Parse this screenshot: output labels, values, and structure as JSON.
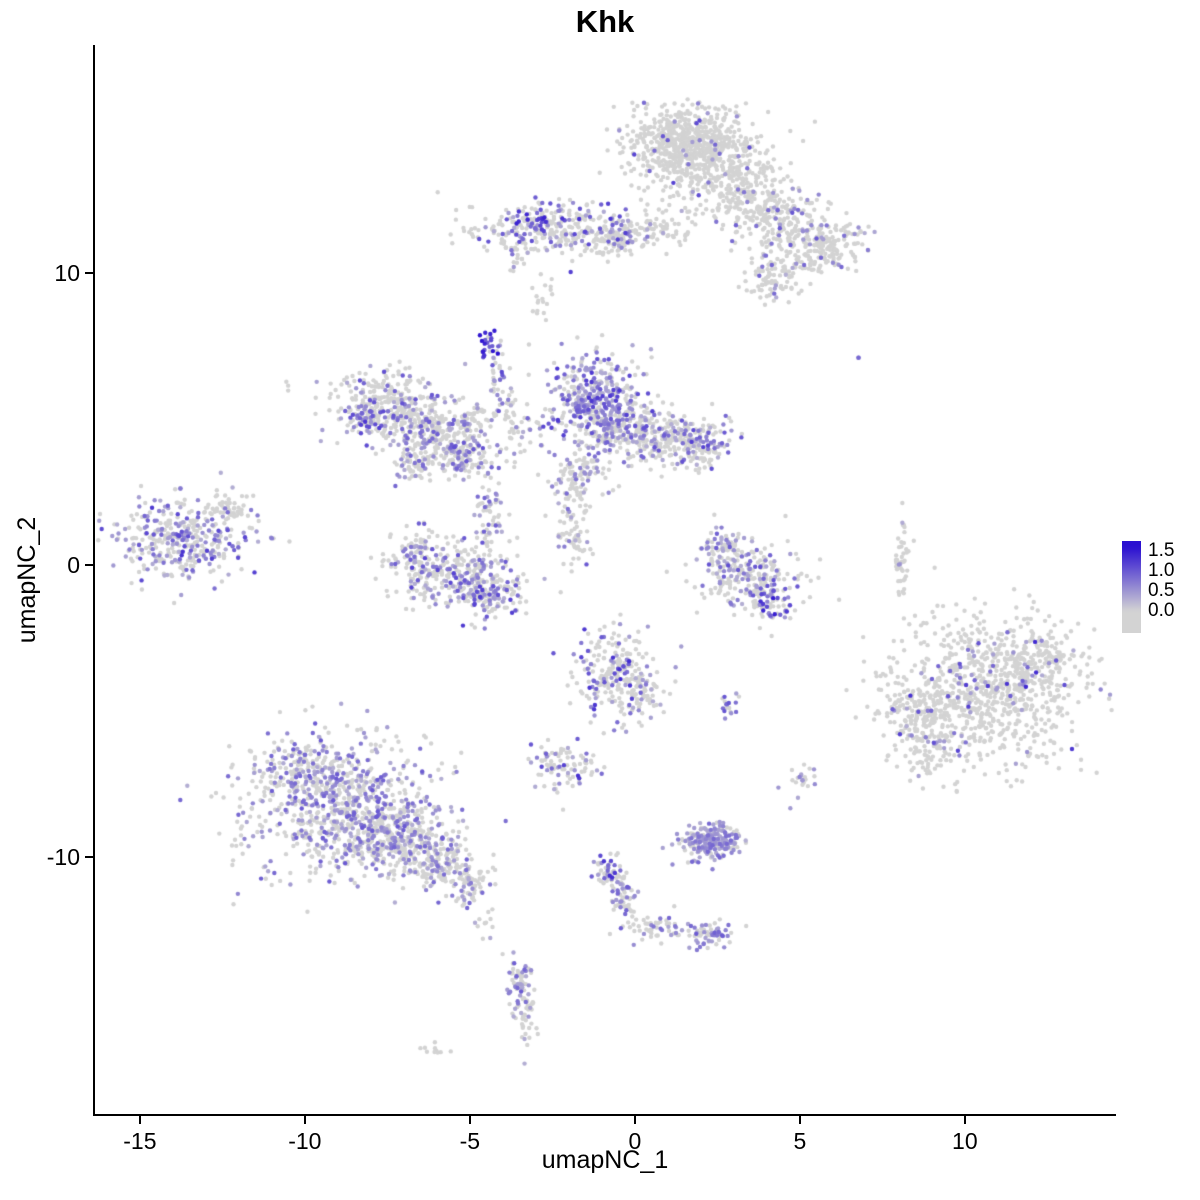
{
  "title": "Khk",
  "axes": {
    "x": {
      "label": "umapNC_1",
      "ticks": [
        {
          "label": "-15",
          "value": -15
        },
        {
          "label": "-10",
          "value": -10
        },
        {
          "label": "-5",
          "value": -5
        },
        {
          "label": "0",
          "value": 0
        },
        {
          "label": "5",
          "value": 5
        },
        {
          "label": "10",
          "value": 10
        }
      ]
    },
    "y": {
      "label": "umapNC_2",
      "ticks": [
        {
          "label": "10",
          "value": 10
        },
        {
          "label": "0",
          "value": 0
        },
        {
          "label": "-10",
          "value": -10
        }
      ]
    }
  },
  "legend": {
    "labels": [
      "1.5",
      "1.0",
      "0.5",
      "0.0"
    ],
    "color_high": "#2a0fd1",
    "color_low": "#d3d3d3"
  },
  "chart_data": {
    "type": "scatter",
    "title": "Khk",
    "xlabel": "umapNC_1",
    "ylabel": "umapNC_2",
    "xlim": [
      -16.36,
      14.55
    ],
    "ylim": [
      -18.84,
      17.81
    ],
    "grid": false,
    "legend_position": "right",
    "point_radius": 2.2,
    "color_scale": {
      "min": 0,
      "max": 1.6,
      "low": "#d3d3d3",
      "high": "#2a0fd1",
      "tick_values": [
        1.5,
        1.0,
        0.5,
        0.0
      ]
    },
    "clusters": [
      {
        "cx": 1.6,
        "cy": 14.6,
        "sx": 0.9,
        "sy": 0.55,
        "n": 500,
        "f": 0.04,
        "lo": 0.4,
        "hi": 1.2
      },
      {
        "cx": 2.2,
        "cy": 13.6,
        "sx": 1.1,
        "sy": 0.6,
        "n": 350,
        "f": 0.05,
        "lo": 0.4,
        "hi": 1.2
      },
      {
        "cx": 3.3,
        "cy": 12.4,
        "sx": 0.8,
        "sy": 0.5,
        "n": 180,
        "f": 0.06,
        "lo": 0.4,
        "hi": 1.0
      },
      {
        "cx": 4.6,
        "cy": 11.6,
        "sx": 0.7,
        "sy": 0.5,
        "n": 160,
        "f": 0.12,
        "lo": 0.4,
        "hi": 1.1
      },
      {
        "cx": 5.5,
        "cy": 10.6,
        "sx": 0.6,
        "sy": 0.4,
        "n": 120,
        "f": 0.15,
        "lo": 0.3,
        "hi": 1.0
      },
      {
        "cx": 4.4,
        "cy": 9.7,
        "sx": 0.3,
        "sy": 0.4,
        "n": 40,
        "f": 0.1,
        "lo": 0.3,
        "hi": 0.9
      },
      {
        "cx": 6.2,
        "cy": 11.2,
        "sx": 0.4,
        "sy": 0.3,
        "n": 60,
        "f": 0.05,
        "lo": 0.3,
        "hi": 0.9
      },
      {
        "cx": -2.2,
        "cy": 11.5,
        "sx": 1.3,
        "sy": 0.45,
        "n": 320,
        "f": 0.22,
        "lo": 0.3,
        "hi": 1.3
      },
      {
        "cx": -3.0,
        "cy": 11.8,
        "sx": 0.25,
        "sy": 0.25,
        "n": 35,
        "f": 0.7,
        "lo": 0.8,
        "hi": 1.5
      },
      {
        "cx": -0.4,
        "cy": 11.2,
        "sx": 0.5,
        "sy": 0.3,
        "n": 80,
        "f": 0.15,
        "lo": 0.3,
        "hi": 1.0
      },
      {
        "cx": 0.9,
        "cy": 11.5,
        "sx": 0.5,
        "sy": 0.35,
        "n": 50,
        "f": 0.08,
        "lo": 0.3,
        "hi": 0.9
      },
      {
        "cx": -3.5,
        "cy": 10.6,
        "sx": 0.2,
        "sy": 0.3,
        "n": 20,
        "f": 0.2,
        "lo": 0.3,
        "hi": 0.9
      },
      {
        "cx": -2.9,
        "cy": 8.9,
        "sx": 0.15,
        "sy": 0.35,
        "n": 12,
        "f": 0.05,
        "lo": 0.3,
        "hi": 0.8
      },
      {
        "cx": -4.45,
        "cy": 7.5,
        "sx": 0.18,
        "sy": 0.3,
        "n": 26,
        "f": 0.85,
        "lo": 0.9,
        "hi": 1.6
      },
      {
        "cx": -4.15,
        "cy": 6.5,
        "sx": 0.15,
        "sy": 0.5,
        "n": 25,
        "f": 0.4,
        "lo": 0.4,
        "hi": 1.2
      },
      {
        "cx": -3.9,
        "cy": 5.6,
        "sx": 0.2,
        "sy": 0.3,
        "n": 25,
        "f": 0.3,
        "lo": 0.3,
        "hi": 0.9
      },
      {
        "cx": -7.4,
        "cy": 5.4,
        "sx": 0.85,
        "sy": 0.6,
        "n": 320,
        "f": 0.3,
        "lo": 0.3,
        "hi": 1.1
      },
      {
        "cx": -8.1,
        "cy": 5.1,
        "sx": 0.3,
        "sy": 0.35,
        "n": 60,
        "f": 0.55,
        "lo": 0.5,
        "hi": 1.3
      },
      {
        "cx": -6.2,
        "cy": 4.4,
        "sx": 0.6,
        "sy": 0.4,
        "n": 150,
        "f": 0.25,
        "lo": 0.3,
        "hi": 1.0
      },
      {
        "cx": -5.1,
        "cy": 3.8,
        "sx": 0.5,
        "sy": 0.4,
        "n": 140,
        "f": 0.35,
        "lo": 0.3,
        "hi": 1.1
      },
      {
        "cx": -6.6,
        "cy": 3.4,
        "sx": 0.4,
        "sy": 0.3,
        "n": 60,
        "f": 0.2,
        "lo": 0.3,
        "hi": 0.9
      },
      {
        "cx": -5.0,
        "cy": 4.9,
        "sx": 0.5,
        "sy": 0.35,
        "n": 70,
        "f": 0.25,
        "lo": 0.3,
        "hi": 1.0
      },
      {
        "cx": -3.3,
        "cy": 4.6,
        "sx": 0.4,
        "sy": 0.35,
        "n": 35,
        "f": 0.3,
        "lo": 0.3,
        "hi": 1.0
      },
      {
        "cx": -1.2,
        "cy": 5.6,
        "sx": 0.7,
        "sy": 0.8,
        "n": 420,
        "f": 0.55,
        "lo": 0.3,
        "hi": 1.3
      },
      {
        "cx": -0.3,
        "cy": 4.6,
        "sx": 0.6,
        "sy": 0.5,
        "n": 180,
        "f": 0.35,
        "lo": 0.3,
        "hi": 1.1
      },
      {
        "cx": 0.8,
        "cy": 4.4,
        "sx": 0.6,
        "sy": 0.4,
        "n": 140,
        "f": 0.3,
        "lo": 0.3,
        "hi": 1.0
      },
      {
        "cx": 2.0,
        "cy": 4.2,
        "sx": 0.5,
        "sy": 0.45,
        "n": 150,
        "f": 0.4,
        "lo": 0.3,
        "hi": 1.2
      },
      {
        "cx": -1.5,
        "cy": 3.3,
        "sx": 0.5,
        "sy": 0.4,
        "n": 80,
        "f": 0.2,
        "lo": 0.3,
        "hi": 0.9
      },
      {
        "cx": -2.0,
        "cy": 2.3,
        "sx": 0.35,
        "sy": 0.6,
        "n": 50,
        "f": 0.15,
        "lo": 0.3,
        "hi": 0.9
      },
      {
        "cx": -13.7,
        "cy": 0.9,
        "sx": 1.0,
        "sy": 0.75,
        "n": 380,
        "f": 0.45,
        "lo": 0.3,
        "hi": 1.3
      },
      {
        "cx": -12.4,
        "cy": 1.9,
        "sx": 0.3,
        "sy": 0.4,
        "n": 40,
        "f": 0.15,
        "lo": 0.3,
        "hi": 0.9
      },
      {
        "cx": -5.6,
        "cy": -0.3,
        "sx": 1.0,
        "sy": 0.55,
        "n": 300,
        "f": 0.35,
        "lo": 0.3,
        "hi": 1.2
      },
      {
        "cx": -4.4,
        "cy": -1.1,
        "sx": 0.5,
        "sy": 0.4,
        "n": 120,
        "f": 0.4,
        "lo": 0.3,
        "hi": 1.3
      },
      {
        "cx": -6.6,
        "cy": 0.3,
        "sx": 0.35,
        "sy": 0.45,
        "n": 70,
        "f": 0.3,
        "lo": 0.3,
        "hi": 1.0
      },
      {
        "cx": -4.4,
        "cy": 1.6,
        "sx": 0.25,
        "sy": 0.6,
        "n": 60,
        "f": 0.3,
        "lo": 0.3,
        "hi": 1.0
      },
      {
        "cx": 3.4,
        "cy": -0.3,
        "sx": 0.8,
        "sy": 0.5,
        "n": 220,
        "f": 0.3,
        "lo": 0.3,
        "hi": 1.1
      },
      {
        "cx": 4.1,
        "cy": -1.3,
        "sx": 0.4,
        "sy": 0.35,
        "n": 70,
        "f": 0.5,
        "lo": 0.5,
        "hi": 1.5
      },
      {
        "cx": 2.7,
        "cy": 0.6,
        "sx": 0.3,
        "sy": 0.4,
        "n": 60,
        "f": 0.35,
        "lo": 0.3,
        "hi": 1.0
      },
      {
        "cx": 8.1,
        "cy": 0.3,
        "sx": 0.13,
        "sy": 0.75,
        "n": 45,
        "f": 0.03,
        "lo": 0.3,
        "hi": 0.8
      },
      {
        "cx": -1.8,
        "cy": 0.8,
        "sx": 0.25,
        "sy": 0.45,
        "n": 40,
        "f": 0.25,
        "lo": 0.3,
        "hi": 1.0
      },
      {
        "cx": 10.6,
        "cy": -4.3,
        "sx": 1.5,
        "sy": 1.3,
        "n": 850,
        "f": 0.08,
        "lo": 0.4,
        "hi": 1.4
      },
      {
        "cx": 8.8,
        "cy": -5.6,
        "sx": 0.6,
        "sy": 0.7,
        "n": 180,
        "f": 0.06,
        "lo": 0.3,
        "hi": 1.0
      },
      {
        "cx": 12.3,
        "cy": -3.2,
        "sx": 0.6,
        "sy": 0.6,
        "n": 120,
        "f": 0.05,
        "lo": 0.3,
        "hi": 1.0
      },
      {
        "cx": -0.6,
        "cy": -3.7,
        "sx": 0.6,
        "sy": 0.8,
        "n": 230,
        "f": 0.22,
        "lo": 0.4,
        "hi": 1.4
      },
      {
        "cx": 0.3,
        "cy": -4.4,
        "sx": 0.3,
        "sy": 0.4,
        "n": 50,
        "f": 0.25,
        "lo": 0.3,
        "hi": 1.0
      },
      {
        "cx": 2.8,
        "cy": -4.8,
        "sx": 0.18,
        "sy": 0.25,
        "n": 18,
        "f": 0.55,
        "lo": 0.4,
        "hi": 1.2
      },
      {
        "cx": -2.2,
        "cy": -6.9,
        "sx": 0.5,
        "sy": 0.4,
        "n": 90,
        "f": 0.3,
        "lo": 0.3,
        "hi": 1.4
      },
      {
        "cx": 5.0,
        "cy": -7.4,
        "sx": 0.25,
        "sy": 0.3,
        "n": 22,
        "f": 0.4,
        "lo": 0.3,
        "hi": 1.2
      },
      {
        "cx": -9.0,
        "cy": -8.2,
        "sx": 1.5,
        "sy": 1.2,
        "n": 800,
        "f": 0.42,
        "lo": 0.3,
        "hi": 1.0
      },
      {
        "cx": -7.2,
        "cy": -9.3,
        "sx": 0.8,
        "sy": 0.7,
        "n": 280,
        "f": 0.35,
        "lo": 0.3,
        "hi": 0.9
      },
      {
        "cx": -5.9,
        "cy": -10.2,
        "sx": 0.55,
        "sy": 0.5,
        "n": 160,
        "f": 0.3,
        "lo": 0.3,
        "hi": 0.9
      },
      {
        "cx": -5.0,
        "cy": -11.0,
        "sx": 0.3,
        "sy": 0.35,
        "n": 60,
        "f": 0.3,
        "lo": 0.3,
        "hi": 0.9
      },
      {
        "cx": -10.3,
        "cy": -6.9,
        "sx": 0.5,
        "sy": 0.5,
        "n": 90,
        "f": 0.3,
        "lo": 0.3,
        "hi": 0.9
      },
      {
        "cx": -4.6,
        "cy": -12.1,
        "sx": 0.15,
        "sy": 0.4,
        "n": 15,
        "f": 0.2,
        "lo": 0.3,
        "hi": 0.8
      },
      {
        "cx": 2.3,
        "cy": -9.5,
        "sx": 0.5,
        "sy": 0.33,
        "n": 220,
        "f": 0.65,
        "lo": 0.3,
        "hi": 0.9
      },
      {
        "cx": -0.85,
        "cy": -10.5,
        "sx": 0.25,
        "sy": 0.3,
        "n": 45,
        "f": 0.45,
        "lo": 0.4,
        "hi": 1.4
      },
      {
        "cx": -0.4,
        "cy": -11.5,
        "sx": 0.2,
        "sy": 0.5,
        "n": 60,
        "f": 0.3,
        "lo": 0.3,
        "hi": 1.0
      },
      {
        "cx": 0.6,
        "cy": -12.4,
        "sx": 0.45,
        "sy": 0.25,
        "n": 50,
        "f": 0.25,
        "lo": 0.3,
        "hi": 0.9
      },
      {
        "cx": 2.2,
        "cy": -12.7,
        "sx": 0.35,
        "sy": 0.25,
        "n": 60,
        "f": 0.55,
        "lo": 0.4,
        "hi": 1.1
      },
      {
        "cx": -3.5,
        "cy": -14.1,
        "sx": 0.22,
        "sy": 0.4,
        "n": 55,
        "f": 0.6,
        "lo": 0.3,
        "hi": 1.1
      },
      {
        "cx": -3.3,
        "cy": -15.3,
        "sx": 0.18,
        "sy": 0.6,
        "n": 45,
        "f": 0.15,
        "lo": 0.3,
        "hi": 0.8
      },
      {
        "cx": -6.1,
        "cy": -16.6,
        "sx": 0.25,
        "sy": 0.15,
        "n": 10,
        "f": 0.05,
        "lo": 0.3,
        "hi": 0.8
      },
      {
        "cx": 6.8,
        "cy": 7.1,
        "sx": 0.05,
        "sy": 0.05,
        "n": 2,
        "f": 1.0,
        "lo": 0.6,
        "hi": 0.9
      },
      {
        "cx": -10.5,
        "cy": 6.1,
        "sx": 0.08,
        "sy": 0.08,
        "n": 3,
        "f": 0.0,
        "lo": 0.3,
        "hi": 0.8
      },
      {
        "cx": -2.6,
        "cy": 9.5,
        "sx": 0.1,
        "sy": 0.25,
        "n": 6,
        "f": 0.1,
        "lo": 0.3,
        "hi": 0.8
      },
      {
        "cx": 3.9,
        "cy": 9.9,
        "sx": 0.35,
        "sy": 0.5,
        "n": 45,
        "f": 0.1,
        "lo": 0.3,
        "hi": 0.9
      }
    ]
  }
}
